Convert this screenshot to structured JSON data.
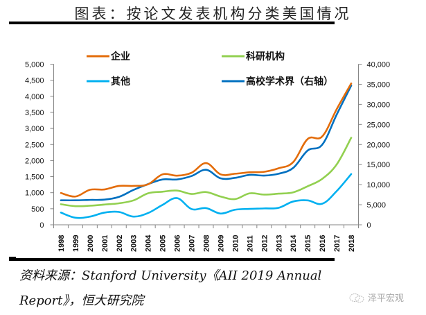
{
  "title": "图表：按论文发表机构分类美国情况",
  "source_line1": "资料来源：Stanford University《AII 2019 Annual",
  "source_line2": "Report》，恒大研究院",
  "watermark": "泽平宏观",
  "chart_data": {
    "type": "line",
    "title": "图表：按论文发表机构分类美国情况",
    "xlabel": "",
    "ylabel_left": "",
    "ylabel_right": "",
    "categories": [
      "1998",
      "1999",
      "2000",
      "2001",
      "2002",
      "2003",
      "2004",
      "2005",
      "2006",
      "2007",
      "2008",
      "2009",
      "2010",
      "2011",
      "2012",
      "2013",
      "2014",
      "2015",
      "2016",
      "2017",
      "2018"
    ],
    "y_left": {
      "min": 0,
      "max": 5000,
      "step": 500,
      "tick_labels": [
        "0",
        "500",
        "1,000",
        "1,500",
        "2,000",
        "2,500",
        "3,000",
        "3,500",
        "4,000",
        "4,500",
        "5,000"
      ]
    },
    "y_right": {
      "min": 0,
      "max": 40000,
      "step": 5000,
      "tick_labels": [
        "0",
        "5,000",
        "10,000",
        "15,000",
        "20,000",
        "25,000",
        "30,000",
        "35,000",
        "40,000"
      ]
    },
    "grid": false,
    "legend_position": "top",
    "series": [
      {
        "name": "企业",
        "axis": "left",
        "color": "#E36C0A",
        "values": [
          990,
          880,
          1090,
          1100,
          1210,
          1210,
          1260,
          1570,
          1530,
          1620,
          1920,
          1570,
          1590,
          1635,
          1650,
          1760,
          1950,
          2670,
          2750,
          3600,
          4400
        ]
      },
      {
        "name": "科研机构",
        "axis": "left",
        "color": "#92D050",
        "values": [
          640,
          580,
          595,
          630,
          670,
          760,
          980,
          1030,
          1065,
          960,
          1020,
          880,
          800,
          980,
          940,
          970,
          1010,
          1200,
          1430,
          1880,
          2710
        ]
      },
      {
        "name": "其他",
        "axis": "left",
        "color": "#00B0F0",
        "values": [
          380,
          220,
          255,
          380,
          400,
          255,
          365,
          620,
          830,
          490,
          520,
          350,
          470,
          495,
          510,
          530,
          725,
          760,
          655,
          1050,
          1580
        ]
      },
      {
        "name": "高校学术界（右轴）",
        "axis": "right",
        "color": "#0070C0",
        "values": [
          6100,
          6100,
          6200,
          6270,
          6960,
          8690,
          10130,
          11290,
          11290,
          12150,
          13700,
          11570,
          11690,
          12430,
          12260,
          12730,
          14160,
          18500,
          19950,
          27450,
          34670
        ]
      }
    ]
  }
}
